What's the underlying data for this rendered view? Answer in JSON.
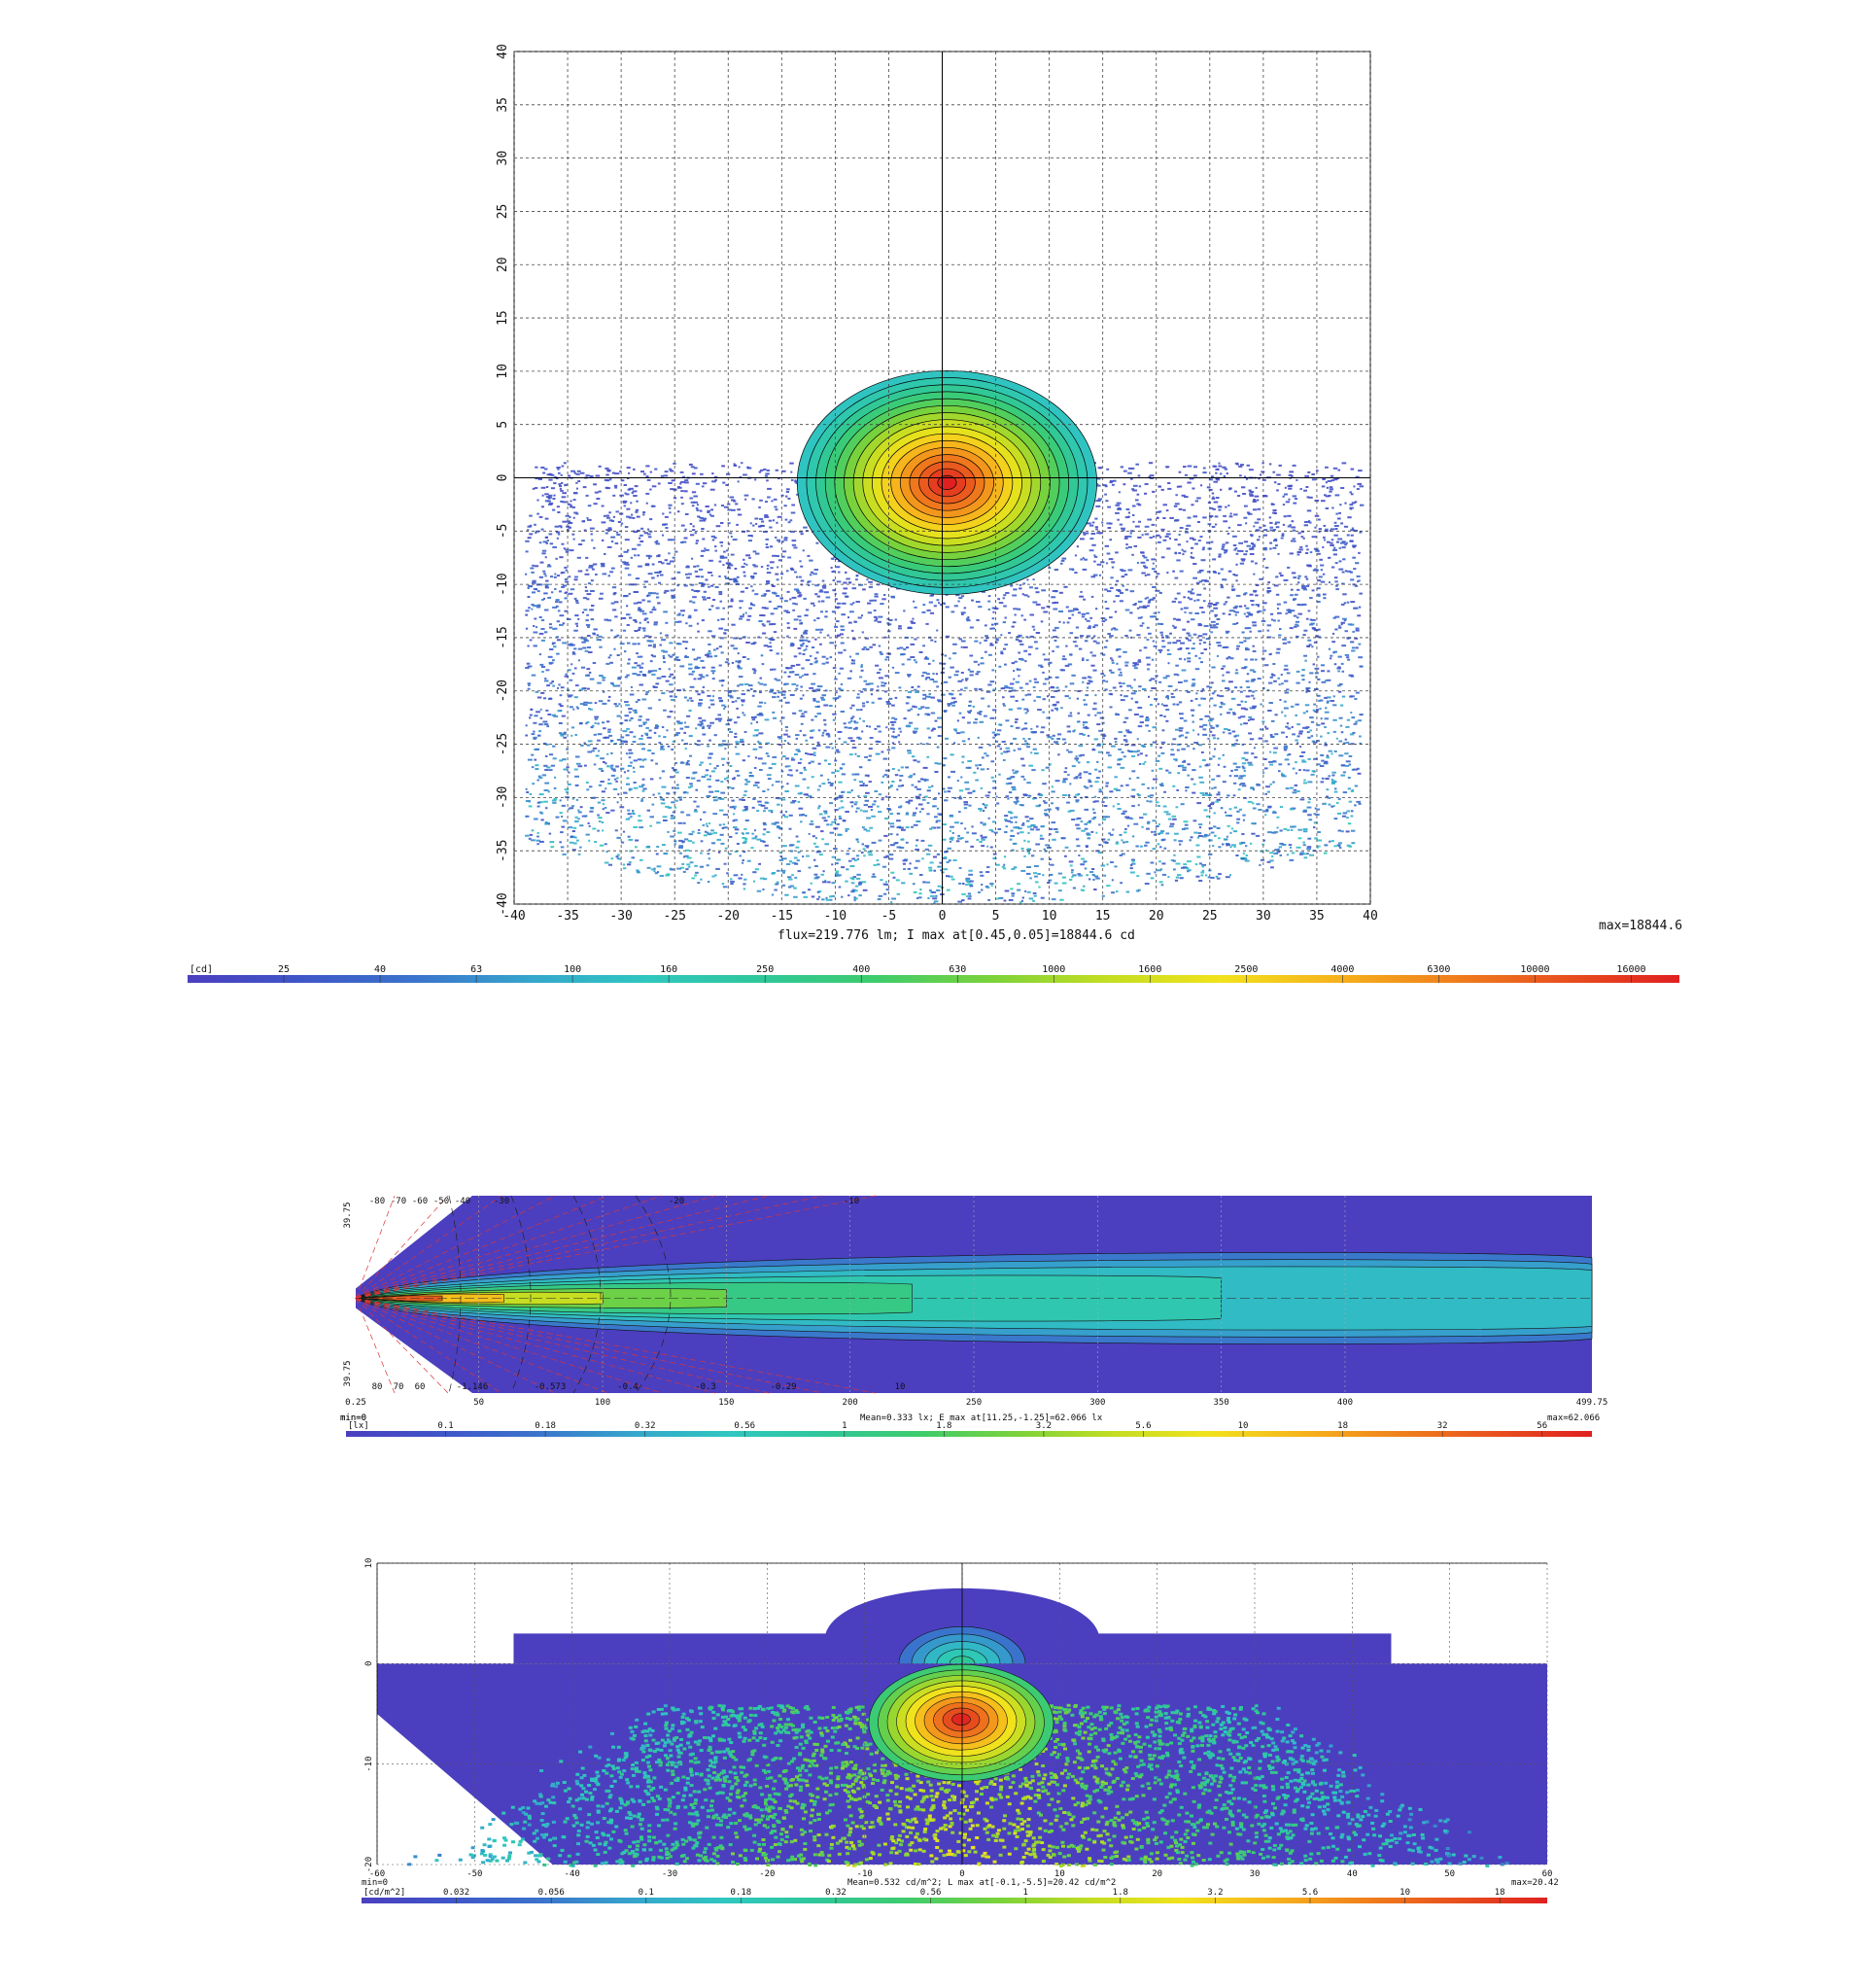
{
  "chart_data": [
    {
      "type": "heatmap",
      "title": "",
      "footer_text": "flux=219.776 lm; I max at[0.45,0.05]=18844.6 cd",
      "max_text": "max=18844.6",
      "xlim": [
        -40,
        40
      ],
      "ylim": [
        -40,
        40
      ],
      "x_ticks": [
        -40,
        -35,
        -30,
        -25,
        -20,
        -15,
        -10,
        -5,
        0,
        5,
        10,
        15,
        20,
        25,
        30,
        35,
        40
      ],
      "y_ticks": [
        -40,
        -35,
        -30,
        -25,
        -20,
        -15,
        -10,
        -5,
        0,
        5,
        10,
        15,
        20,
        25,
        30,
        35,
        40
      ],
      "grid": true,
      "peak": {
        "x": 0.45,
        "y": 0.05,
        "value": 18844.6
      },
      "colorbar": {
        "unit": "[cd]",
        "ticks": [
          "25",
          "40",
          "63",
          "100",
          "160",
          "250",
          "400",
          "630",
          "1000",
          "1600",
          "2500",
          "4000",
          "6300",
          "10000",
          "16000"
        ]
      }
    },
    {
      "type": "heatmap",
      "title": "",
      "min_text": "min=0",
      "max_text": "max=62.066",
      "footer_text": "Mean=0.333 lx; E max at[11.25,-1.25]=62.066 lx",
      "xlim": [
        0.25,
        499.75
      ],
      "ylim": [
        -39.75,
        39.75
      ],
      "x_tick_labels": [
        "0.25",
        "50",
        "100",
        "150",
        "200",
        "250",
        "300",
        "350",
        "400",
        "499.75"
      ],
      "x_ticks": [
        0.25,
        50,
        100,
        150,
        200,
        250,
        300,
        350,
        400,
        499.75
      ],
      "y_tick_labels": [
        "39.75",
        "39.75"
      ],
      "angle_labels_top": [
        "-80",
        "-70",
        "-60",
        "-50",
        "-40",
        "-30",
        "-20",
        "-10"
      ],
      "angle_labels_bottom": [
        "80",
        "70",
        "60",
        "-1.146",
        "-0.573",
        "-0.4",
        "-0.3",
        "-0.29",
        "10"
      ],
      "grid": true,
      "peak": {
        "x": 11.25,
        "y": -1.25,
        "value": 62.066
      },
      "colorbar": {
        "unit": "[lx]",
        "ticks": [
          "0.1",
          "0.18",
          "0.32",
          "0.56",
          "1",
          "1.8",
          "3.2",
          "5.6",
          "10",
          "18",
          "32",
          "56"
        ]
      }
    },
    {
      "type": "heatmap",
      "title": "",
      "min_text": "min=0",
      "max_text": "max=20.42",
      "footer_text": "Mean=0.532 cd/m^2; L max at[-0.1,-5.5]=20.42 cd/m^2",
      "xlim": [
        -60,
        60
      ],
      "ylim": [
        -20,
        10
      ],
      "x_ticks": [
        -60,
        -50,
        -40,
        -30,
        -20,
        -10,
        0,
        10,
        20,
        30,
        40,
        50,
        60
      ],
      "y_ticks": [
        10,
        0,
        -10,
        -20
      ],
      "grid": true,
      "peak": {
        "x": -0.1,
        "y": -5.5,
        "value": 20.42
      },
      "colorbar": {
        "unit": "[cd/m^2]",
        "ticks": [
          "0.032",
          "0.056",
          "0.1",
          "0.18",
          "0.32",
          "0.56",
          "1",
          "1.8",
          "3.2",
          "5.6",
          "10",
          "18"
        ]
      }
    }
  ]
}
